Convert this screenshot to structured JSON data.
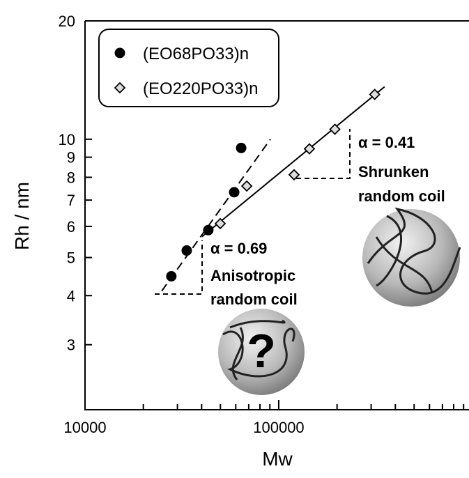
{
  "chart_data": {
    "type": "scatter",
    "x_label": "Mw",
    "y_label": "Rh / nm",
    "xlog": true,
    "ylog": true,
    "xlim": [
      10000,
      960000
    ],
    "ylim": [
      2.05,
      20
    ],
    "xticks": [
      10000,
      100000
    ],
    "xminor": [
      20000,
      30000,
      40000,
      50000,
      60000,
      70000,
      80000,
      90000,
      200000,
      300000,
      400000,
      500000,
      600000,
      700000,
      800000,
      900000
    ],
    "yticks": [
      3,
      4,
      5,
      6,
      7,
      8,
      9,
      10,
      20
    ],
    "series": [
      {
        "name": "(EO68PO33)n",
        "marker": "circle",
        "color": "#000000",
        "x": [
          27900,
          33500,
          43300,
          58900,
          64000
        ],
        "values": [
          4.48,
          5.21,
          5.87,
          7.33,
          9.5
        ]
      },
      {
        "name": "(EO220PO33)n",
        "marker": "diamond",
        "color": "#dddddd",
        "x": [
          49900,
          68400,
          120000,
          144000,
          195000,
          313000
        ],
        "values": [
          6.1,
          7.6,
          8.12,
          9.45,
          10.6,
          13.0
        ]
      }
    ],
    "fit_lines": [
      {
        "style": "dashed",
        "x": [
          24900,
          90600
        ],
        "values": [
          4.11,
          10
        ]
      },
      {
        "style": "solid",
        "x": [
          40200,
          352000
        ],
        "values": [
          5.65,
          13.6
        ]
      }
    ],
    "annotations": [
      "α = 0.69",
      "Anisotropic",
      "random coil",
      "α = 0.41",
      "Shrunken",
      "random coil",
      "?"
    ]
  }
}
